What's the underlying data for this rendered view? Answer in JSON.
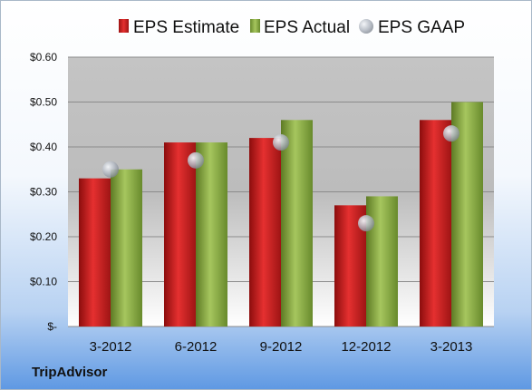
{
  "chart_data": {
    "type": "bar",
    "categories": [
      "3-2012",
      "6-2012",
      "9-2012",
      "12-2012",
      "3-2013"
    ],
    "series": [
      {
        "name": "EPS Estimate",
        "values": [
          0.33,
          0.41,
          0.42,
          0.27,
          0.46
        ],
        "color": "#d42a2a"
      },
      {
        "name": "EPS Actual",
        "values": [
          0.35,
          0.41,
          0.46,
          0.29,
          0.5
        ],
        "color": "#8fb04a"
      },
      {
        "name": "EPS GAAP",
        "values": [
          0.35,
          0.37,
          0.41,
          0.23,
          0.43
        ],
        "color": "#b8bcc4",
        "type": "scatter"
      }
    ],
    "ylim": [
      0,
      0.6
    ],
    "yticks": [
      0,
      0.1,
      0.2,
      0.3,
      0.4,
      0.5,
      0.6
    ],
    "ytick_labels": [
      "$-",
      "$0.10",
      "$0.20",
      "$0.30",
      "$0.40",
      "$0.50",
      "$0.60"
    ],
    "grid": true,
    "legend_position": "top"
  },
  "footer": {
    "company": "TripAdvisor"
  }
}
